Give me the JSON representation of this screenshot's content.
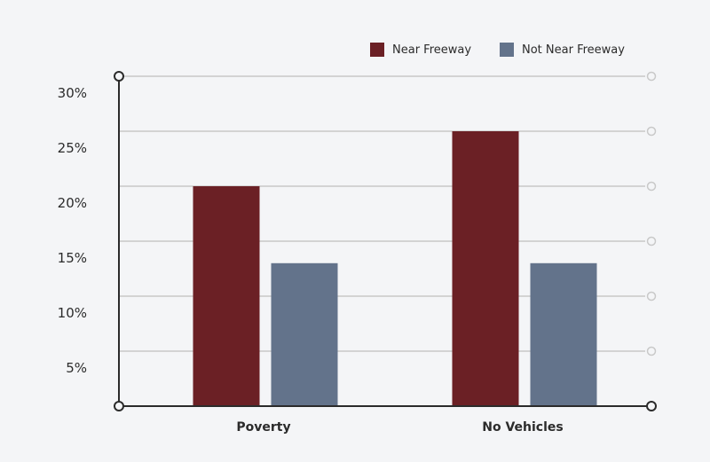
{
  "chart_data": {
    "type": "bar",
    "categories": [
      "Poverty",
      "No Vehicles"
    ],
    "series": [
      {
        "name": "Near Freeway",
        "values": [
          20,
          25
        ],
        "color": "#6b2025"
      },
      {
        "name": "Not Near Freeway",
        "values": [
          13,
          13
        ],
        "color": "#63738b"
      }
    ],
    "yticks": [
      "30%",
      "25%",
      "20%",
      "15%",
      "10%",
      "5%"
    ],
    "ytick_values": [
      30,
      25,
      20,
      15,
      10,
      5
    ],
    "ylim": [
      0,
      30
    ],
    "grid": true,
    "legend_position": "top-right",
    "title": "",
    "xlabel": "",
    "ylabel": ""
  },
  "colors": {
    "background": "#f4f5f7",
    "gridline": "#d3d3d3",
    "axis": "#2b2b2b",
    "right_marker": "#c9c9c9"
  }
}
